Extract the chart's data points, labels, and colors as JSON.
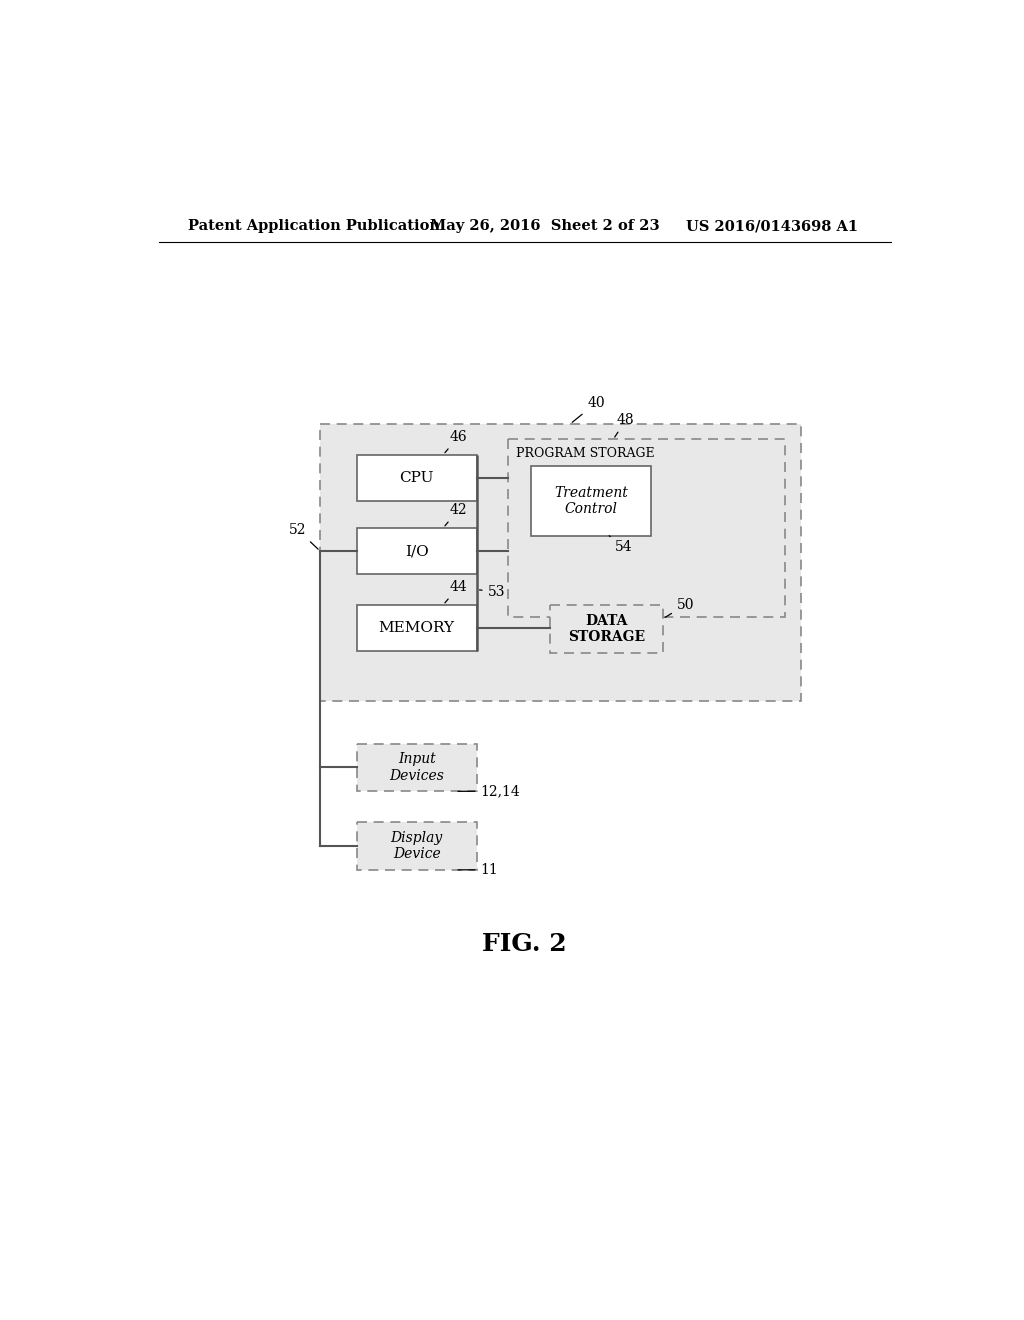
{
  "page_bg": "#ffffff",
  "header_left": "Patent Application Publication",
  "header_mid": "May 26, 2016  Sheet 2 of 23",
  "header_right": "US 2016/0143698 A1",
  "fig_label": "FIG. 2",
  "outer_box_label": "40",
  "program_storage_label": "48",
  "cpu_label": "CPU",
  "cpu_ref": "46",
  "io_label": "I/O",
  "io_ref": "42",
  "memory_label": "MEMORY",
  "memory_ref": "44",
  "bus_ref": "53",
  "program_storage_text": "PROGRAM STORAGE",
  "treatment_control_label": "Treatment\nControl",
  "treatment_control_ref": "54",
  "data_storage_label": "DATA\nSTORAGE",
  "data_storage_ref": "50",
  "input_devices_label": "Input\nDevices",
  "input_devices_ref": "12,14",
  "display_device_label": "Display\nDevice",
  "display_device_ref": "11",
  "io_connection_ref": "52",
  "diag_bg": "#e8e8e8",
  "box_bg": "#ffffff",
  "box_edge": "#555555"
}
